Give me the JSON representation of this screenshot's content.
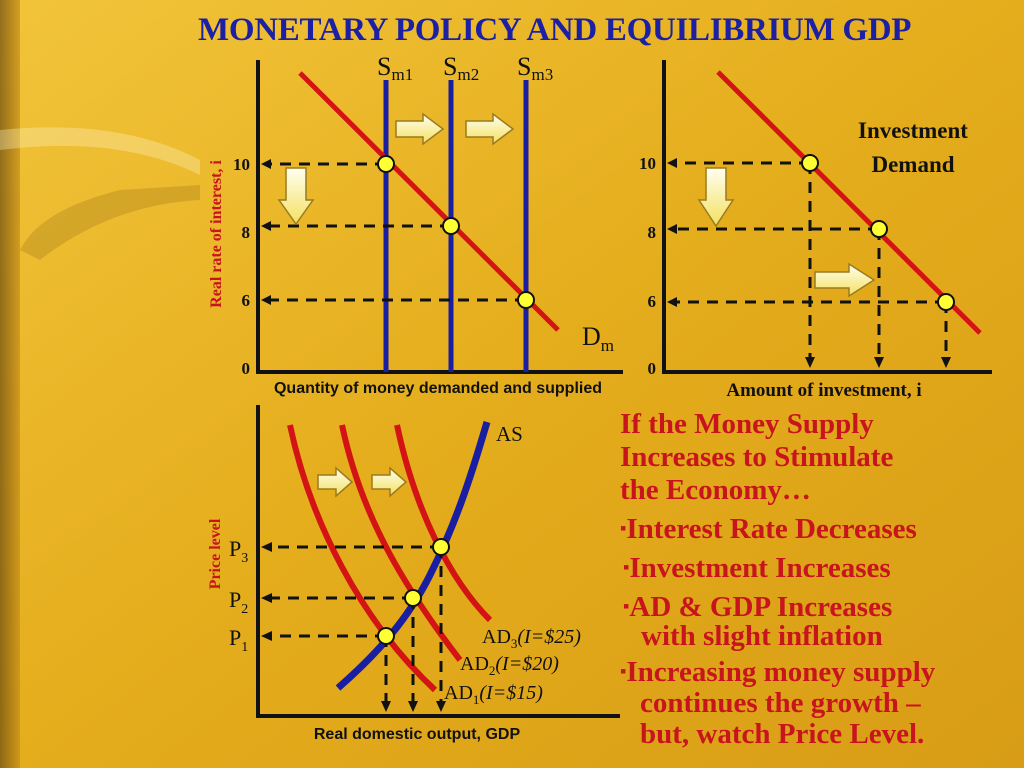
{
  "title": "MONETARY POLICY AND EQUILIBRIUM GDP",
  "colors": {
    "background": "#e8b21e",
    "curve_red": "#d41414",
    "supply_blue": "#1a1ea0",
    "title_blue": "#1c20a4",
    "text_red": "#c8141c",
    "point_yellow": "#ffff33"
  },
  "money_market": {
    "ylabel": "Real rate of interest, i",
    "xlabel": "Quantity of money demanded and supplied",
    "y_ticks": [
      "10",
      "8",
      "6",
      "0"
    ],
    "supply_labels": [
      {
        "main": "S",
        "sub": "m1"
      },
      {
        "main": "S",
        "sub": "m2"
      },
      {
        "main": "S",
        "sub": "m3"
      }
    ],
    "demand_label": {
      "main": "D",
      "sub": "m"
    }
  },
  "investment": {
    "xlabel": "Amount of investment, i",
    "y_ticks": [
      "10",
      "8",
      "6",
      "0"
    ],
    "curve_label_line1": "Investment",
    "curve_label_line2": "Demand"
  },
  "ad_as": {
    "ylabel": "Price level",
    "xlabel": "Real domestic output, GDP",
    "as_label": "AS",
    "p_labels": [
      {
        "main": "P",
        "sub": "3"
      },
      {
        "main": "P",
        "sub": "2"
      },
      {
        "main": "P",
        "sub": "1"
      }
    ],
    "ad_labels": [
      {
        "main": "AD",
        "sub": "3",
        "note": "(I=$25)"
      },
      {
        "main": "AD",
        "sub": "2",
        "note": "(I=$20)"
      },
      {
        "main": "AD",
        "sub": "1",
        "note": "(I=$15)"
      }
    ]
  },
  "text_block": {
    "intro_line1": "If the Money Supply",
    "intro_line2": "Increases to Stimulate",
    "intro_line3": "the Economy…",
    "bullet_char": "▪",
    "bullet1": "Interest Rate Decreases",
    "bullet2": "Investment Increases",
    "bullet3_line1": "AD & GDP Increases",
    "bullet3_line2": "with slight inflation",
    "bullet4_line1": "Increasing money supply",
    "bullet4_line2": "continues the growth –",
    "bullet4_line3": "but, watch Price Level."
  }
}
